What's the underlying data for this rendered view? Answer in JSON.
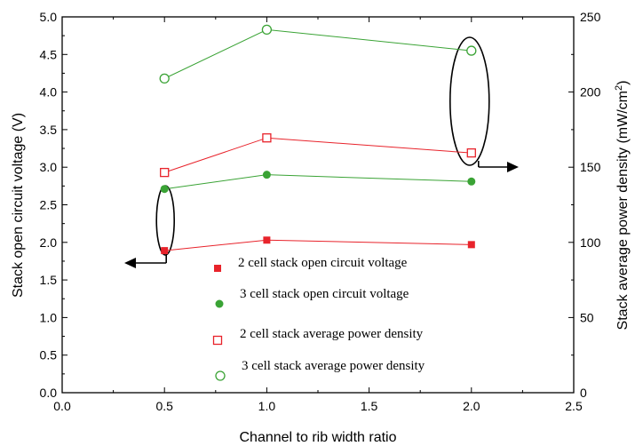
{
  "chart_data": {
    "type": "line",
    "xlabel": "Channel to rib width ratio",
    "ylabel_left": "Stack open circuit voltage (V)",
    "ylabel_right": "Stack average power density (mW/cm",
    "ylabel_right_superscript": "2",
    "ylabel_right_suffix": ")",
    "xlim": [
      0.0,
      2.5
    ],
    "ylim_left": [
      0.0,
      5.0
    ],
    "ylim_right": [
      0,
      250
    ],
    "x_ticks": [
      "0.0",
      "0.5",
      "1.0",
      "1.5",
      "2.0",
      "2.5"
    ],
    "y_left_ticks": [
      "0.0",
      "0.5",
      "1.0",
      "1.5",
      "2.0",
      "2.5",
      "3.0",
      "3.5",
      "4.0",
      "4.5",
      "5.0"
    ],
    "y_right_ticks": [
      "0",
      "50",
      "100",
      "150",
      "200",
      "250"
    ],
    "grid": false,
    "legend_position": "bottom-center",
    "x": [
      0.5,
      1.0,
      2.0
    ],
    "series": [
      {
        "name": "2 cell stack open circuit voltage",
        "axis": "left",
        "values": [
          1.89,
          2.03,
          1.97
        ],
        "color": "#e8232b",
        "marker": "square-filled"
      },
      {
        "name": "3 cell stack open circuit voltage",
        "axis": "left",
        "values": [
          2.71,
          2.9,
          2.81
        ],
        "color": "#3aa335",
        "marker": "circle-filled"
      },
      {
        "name": "2 cell stack average power density",
        "axis": "right",
        "values": [
          146.5,
          169.5,
          159.5
        ],
        "color": "#e8232b",
        "marker": "square-open"
      },
      {
        "name": "3 cell stack average power density",
        "axis": "right",
        "values": [
          209,
          241.5,
          227.5
        ],
        "color": "#3aa335",
        "marker": "circle-open"
      }
    ]
  }
}
